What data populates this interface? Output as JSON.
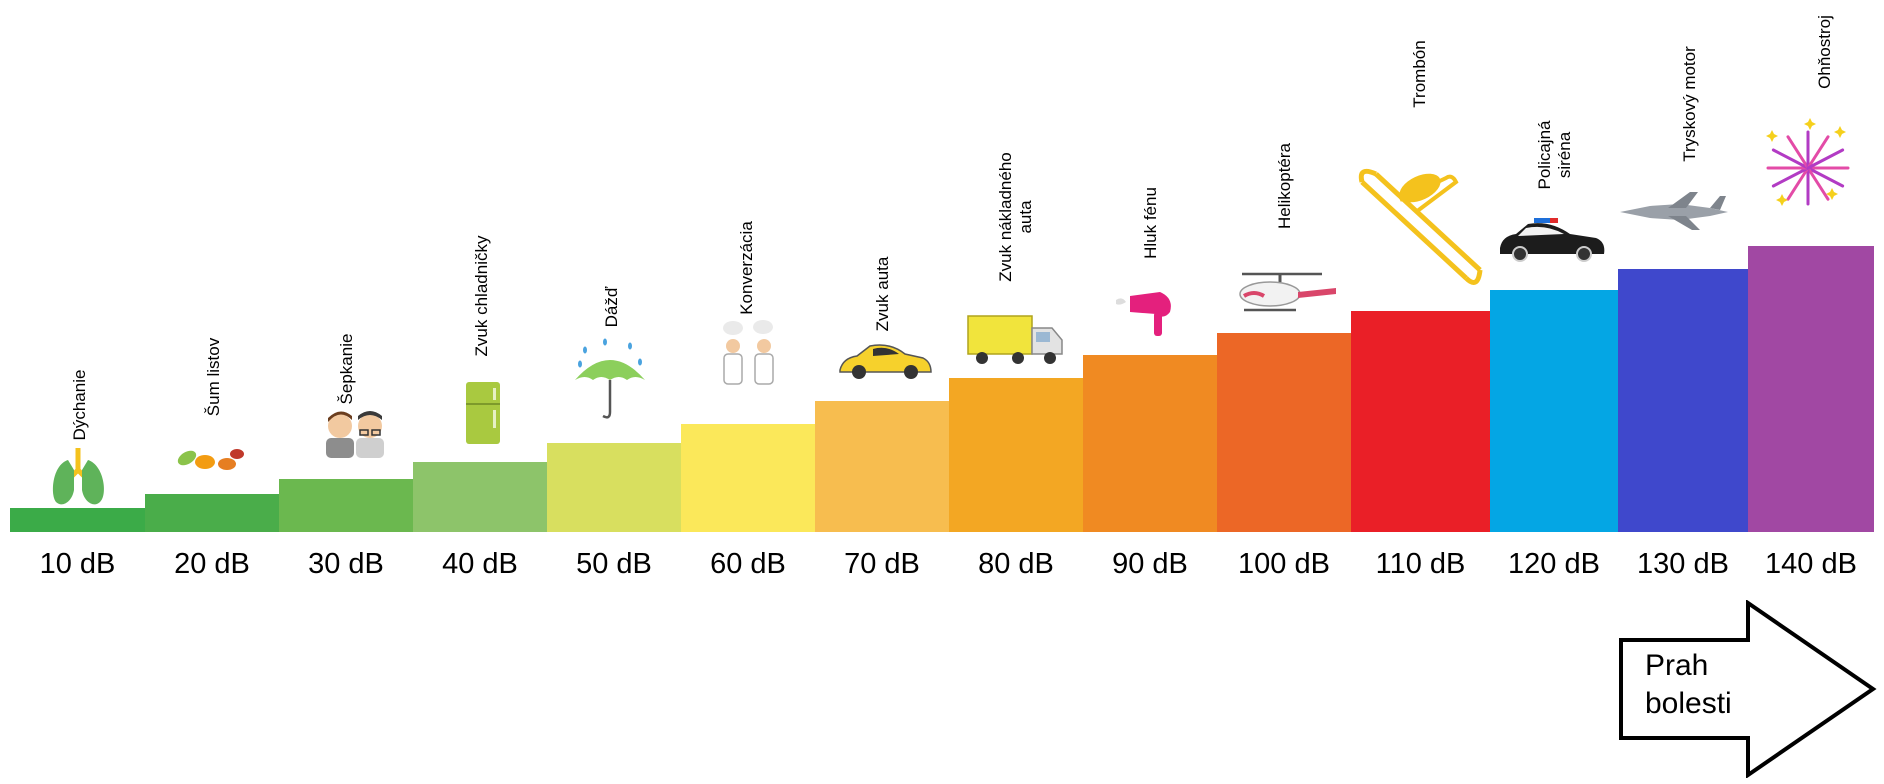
{
  "levels": [
    {
      "db": "10 dB",
      "label": [
        "Dýchanie"
      ],
      "color": "#3bab48",
      "icon": "lungs-icon"
    },
    {
      "db": "20 dB",
      "label": [
        "Šum listov"
      ],
      "color": "#4aad4a",
      "icon": "leaves-icon"
    },
    {
      "db": "30 dB",
      "label": [
        "Šepkanie"
      ],
      "color": "#6bb84f",
      "icon": "whispering-people-icon"
    },
    {
      "db": "40 dB",
      "label": [
        "Zvuk chladničky"
      ],
      "color": "#8dc46a",
      "icon": "refrigerator-icon"
    },
    {
      "db": "50 dB",
      "label": [
        "Dážď"
      ],
      "color": "#d8df5f",
      "icon": "umbrella-rain-icon"
    },
    {
      "db": "60 dB",
      "label": [
        "Konverzácia"
      ],
      "color": "#fbe85a",
      "icon": "conversation-people-icon"
    },
    {
      "db": "70 dB",
      "label": [
        "Zvuk auta"
      ],
      "color": "#f7bd4f",
      "icon": "car-icon"
    },
    {
      "db": "80 dB",
      "label": [
        "Zvuk nákladného",
        "auta"
      ],
      "color": "#f3a723",
      "icon": "truck-icon"
    },
    {
      "db": "90 dB",
      "label": [
        "Hluk fénu"
      ],
      "color": "#f08a22",
      "icon": "hair-dryer-icon"
    },
    {
      "db": "100 dB",
      "label": [
        "Helikoptéra"
      ],
      "color": "#ec6726",
      "icon": "helicopter-icon"
    },
    {
      "db": "110 dB",
      "label": [
        "Trombón"
      ],
      "color": "#ea1f27",
      "icon": "trombone-icon"
    },
    {
      "db": "120 dB",
      "label": [
        "Policajná",
        "siréna"
      ],
      "color": "#04a6e4",
      "icon": "police-car-icon"
    },
    {
      "db": "130 dB",
      "label": [
        "Tryskový motor"
      ],
      "color": "#3f48cc",
      "icon": "jet-icon"
    },
    {
      "db": "140 dB",
      "label": [
        "Ohňostroj"
      ],
      "color": "#a148a3",
      "icon": "fireworks-icon"
    }
  ],
  "pain_threshold": {
    "line1": "Prah",
    "line2": "bolesti"
  }
}
